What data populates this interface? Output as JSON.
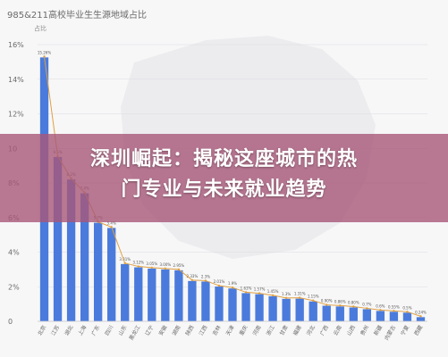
{
  "chart_title": "985&211高校毕业生生源地域占比",
  "chart_subtitle": "占比",
  "overlay": {
    "line1": "深圳崛起：揭秘这座城市的热",
    "line2": "门专业与未来就业趋势"
  },
  "colors": {
    "bar": "#4a7bdc",
    "line": "#e0a040",
    "overlay": "#a85878",
    "axis_text": "#6a6a6a"
  },
  "chart_data": {
    "type": "bar",
    "title": "985&211高校毕业生生源地域占比",
    "ylabel": "占比",
    "ylim": [
      0,
      16
    ],
    "yticks": [
      "0",
      "2%",
      "4%",
      "6%",
      "8%",
      "10",
      "12%",
      "14%",
      "16%"
    ],
    "grid": true,
    "categories": [
      "北京",
      "江苏",
      "湖北",
      "上海",
      "广东",
      "四川",
      "山东",
      "黑龙江",
      "辽宁",
      "安徽",
      "湖南",
      "陕西",
      "江西",
      "吉林",
      "天津",
      "重庆",
      "河南",
      "浙江",
      "甘肃",
      "福建",
      "河北",
      "广西",
      "云南",
      "山西",
      "贵州",
      "新疆",
      "内蒙古",
      "宁夏",
      "西藏"
    ],
    "values": [
      15.26,
      9.5,
      8.2,
      7.4,
      5.7,
      5.4,
      3.31,
      3.12,
      3.05,
      3.0,
      2.95,
      2.33,
      2.3,
      2.01,
      1.9,
      1.63,
      1.57,
      1.45,
      1.3,
      1.31,
      1.15,
      0.9,
      0.86,
      0.8,
      0.7,
      0.6,
      0.55,
      0.5,
      0.24
    ],
    "data_labels": [
      "15.26%",
      "9.5%",
      "8.2%",
      "7.4%",
      "5.7%",
      "5.4%",
      "3.31%",
      "3.12%",
      "3.05%",
      "3.00%",
      "2.95%",
      "2.33%",
      "2.3%",
      "2.01%",
      "1.9%",
      "1.63%",
      "1.57%",
      "1.45%",
      "1.3%",
      "1.31%",
      "1.15%",
      "0.90%",
      "0.86%",
      "0.80%",
      "0.7%",
      "0.6%",
      "0.55%",
      "0.5%",
      "0.24%"
    ],
    "overlay_line": true
  }
}
